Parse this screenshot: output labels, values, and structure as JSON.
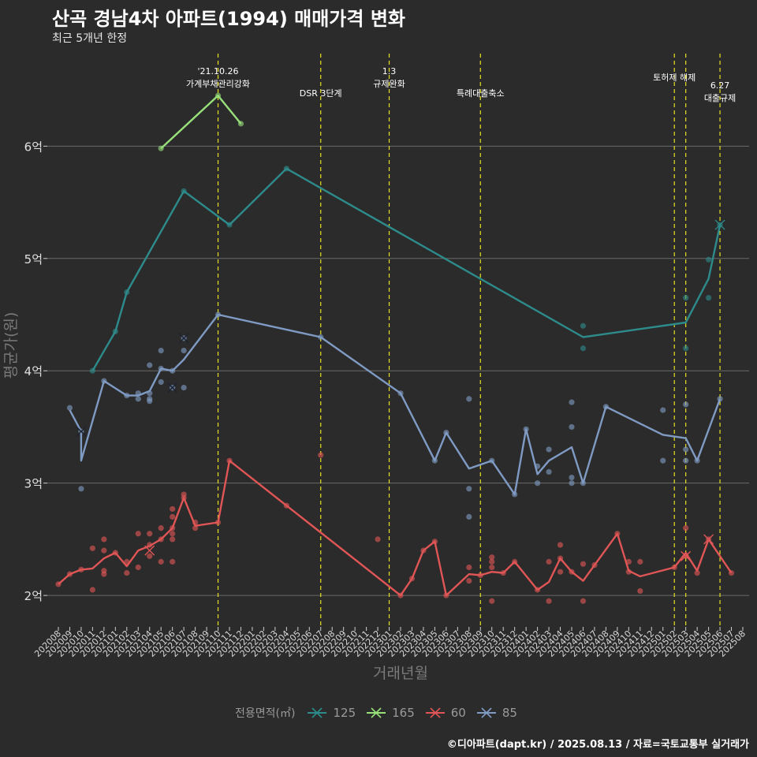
{
  "chart_data": {
    "type": "line",
    "title": "산곡 경남4차 아파트(1994) 매매가격 변화",
    "subtitle": "최근 5개년 한정",
    "xlabel": "거래년월",
    "ylabel": "평균가(원)",
    "caption": "©디아파트(dapt.kr) / 2025.08.13 / 자료=국토교통부 실거래가",
    "y_unit": "억",
    "ylim": [
      1.72,
      6.88
    ],
    "y_ticks": [
      2,
      3,
      4,
      5,
      6
    ],
    "y_tick_labels": [
      "2억",
      "3억",
      "4억",
      "5억",
      "6억"
    ],
    "x_ticks": [
      "202008",
      "202009",
      "202010",
      "202011",
      "202012",
      "202101",
      "202102",
      "202103",
      "202104",
      "202105",
      "202106",
      "202107",
      "202108",
      "202109",
      "202110",
      "202111",
      "202112",
      "202201",
      "202202",
      "202203",
      "202204",
      "202205",
      "202206",
      "202207",
      "202208",
      "202209",
      "202210",
      "202211",
      "202212",
      "202301",
      "202302",
      "202303",
      "202304",
      "202305",
      "202306",
      "202307",
      "202308",
      "202309",
      "202310",
      "202311",
      "202312",
      "202401",
      "202402",
      "202403",
      "202404",
      "202405",
      "202406",
      "202407",
      "202408",
      "202409",
      "202410",
      "202411",
      "202412",
      "202501",
      "202502",
      "202503",
      "202504",
      "202505",
      "202506",
      "202507",
      "202508"
    ],
    "grid": true,
    "legend_title": "전용면적(㎡)",
    "legend_position": "bottom",
    "series": [
      {
        "name": "125",
        "color": "#2e8b8b",
        "line": [
          [
            "202011",
            4.0
          ],
          [
            "202101",
            4.35
          ],
          [
            "202102",
            4.7
          ],
          [
            "202107",
            5.6
          ],
          [
            "202111",
            5.3
          ],
          [
            "202204",
            5.8
          ],
          [
            "202406",
            4.3
          ],
          [
            "202503",
            4.43
          ],
          [
            "202505",
            4.82
          ],
          [
            "202506",
            5.3
          ]
        ],
        "points": [
          [
            "202011",
            4.0
          ],
          [
            "202101",
            4.35
          ],
          [
            "202102",
            4.7
          ],
          [
            "202107",
            5.6
          ],
          [
            "202111",
            5.3
          ],
          [
            "202204",
            5.8
          ],
          [
            "202406",
            4.4
          ],
          [
            "202406",
            4.2
          ],
          [
            "202503",
            4.65
          ],
          [
            "202503",
            4.2
          ],
          [
            "202505",
            4.99
          ],
          [
            "202505",
            4.65
          ],
          [
            "202506",
            5.3
          ]
        ],
        "crosses": [
          [
            "202506",
            5.3
          ]
        ]
      },
      {
        "name": "165",
        "color": "#98e07a",
        "line": [
          [
            "202105",
            5.98
          ],
          [
            "202110",
            6.45
          ],
          [
            "202112",
            6.2
          ]
        ],
        "points": [
          [
            "202105",
            5.98
          ],
          [
            "202110",
            6.45
          ],
          [
            "202112",
            6.2
          ]
        ],
        "crosses": []
      },
      {
        "name": "60",
        "color": "#e05555",
        "line": [
          [
            "202008",
            2.1
          ],
          [
            "202009",
            2.19
          ],
          [
            "202010",
            2.23
          ],
          [
            "202011",
            2.24
          ],
          [
            "202012",
            2.33
          ],
          [
            "202101",
            2.38
          ],
          [
            "202102",
            2.26
          ],
          [
            "202103",
            2.4
          ],
          [
            "202104",
            2.44
          ],
          [
            "202105",
            2.5
          ],
          [
            "202106",
            2.6
          ],
          [
            "202107",
            2.87
          ],
          [
            "202108",
            2.62
          ],
          [
            "202110",
            2.65
          ],
          [
            "202111",
            3.2
          ],
          [
            "202302",
            2.0
          ],
          [
            "202303",
            2.15
          ],
          [
            "202304",
            2.4
          ],
          [
            "202305",
            2.48
          ],
          [
            "202306",
            2.0
          ],
          [
            "202308",
            2.19
          ],
          [
            "202309",
            2.18
          ],
          [
            "202310",
            2.21
          ],
          [
            "202311",
            2.2
          ],
          [
            "202312",
            2.3
          ],
          [
            "202402",
            2.05
          ],
          [
            "202403",
            2.12
          ],
          [
            "202404",
            2.33
          ],
          [
            "202405",
            2.21
          ],
          [
            "202406",
            2.13
          ],
          [
            "202407",
            2.27
          ],
          [
            "202409",
            2.55
          ],
          [
            "202410",
            2.22
          ],
          [
            "202411",
            2.17
          ],
          [
            "202502",
            2.25
          ],
          [
            "202503",
            2.38
          ],
          [
            "202504",
            2.22
          ],
          [
            "202505",
            2.5
          ],
          [
            "202507",
            2.2
          ]
        ],
        "points": [
          [
            "202008",
            2.1
          ],
          [
            "202009",
            2.19
          ],
          [
            "202010",
            2.23
          ],
          [
            "202011",
            2.42
          ],
          [
            "202011",
            2.05
          ],
          [
            "202012",
            2.5
          ],
          [
            "202012",
            2.4
          ],
          [
            "202012",
            2.22
          ],
          [
            "202012",
            2.19
          ],
          [
            "202101",
            2.38
          ],
          [
            "202102",
            2.3
          ],
          [
            "202102",
            2.2
          ],
          [
            "202103",
            2.55
          ],
          [
            "202103",
            2.25
          ],
          [
            "202104",
            2.55
          ],
          [
            "202104",
            2.45
          ],
          [
            "202104",
            2.35
          ],
          [
            "202105",
            2.6
          ],
          [
            "202105",
            2.5
          ],
          [
            "202105",
            2.3
          ],
          [
            "202106",
            2.77
          ],
          [
            "202106",
            2.7
          ],
          [
            "202106",
            2.6
          ],
          [
            "202106",
            2.55
          ],
          [
            "202106",
            2.5
          ],
          [
            "202106",
            2.3
          ],
          [
            "202107",
            2.9
          ],
          [
            "202107",
            2.87
          ],
          [
            "202108",
            2.65
          ],
          [
            "202108",
            2.6
          ],
          [
            "202110",
            2.65
          ],
          [
            "202111",
            3.2
          ],
          [
            "202204",
            2.8
          ],
          [
            "202207",
            3.25
          ],
          [
            "202212",
            2.5
          ],
          [
            "202302",
            2.0
          ],
          [
            "202303",
            2.15
          ],
          [
            "202304",
            2.4
          ],
          [
            "202305",
            2.48
          ],
          [
            "202306",
            2.0
          ],
          [
            "202308",
            2.25
          ],
          [
            "202308",
            2.13
          ],
          [
            "202309",
            2.18
          ],
          [
            "202310",
            2.34
          ],
          [
            "202310",
            2.3
          ],
          [
            "202310",
            2.25
          ],
          [
            "202310",
            1.95
          ],
          [
            "202311",
            2.2
          ],
          [
            "202312",
            2.3
          ],
          [
            "202402",
            2.05
          ],
          [
            "202403",
            2.3
          ],
          [
            "202403",
            1.95
          ],
          [
            "202404",
            2.45
          ],
          [
            "202404",
            2.33
          ],
          [
            "202404",
            2.21
          ],
          [
            "202405",
            2.21
          ],
          [
            "202406",
            2.28
          ],
          [
            "202406",
            1.95
          ],
          [
            "202407",
            2.27
          ],
          [
            "202409",
            2.55
          ],
          [
            "202410",
            2.3
          ],
          [
            "202410",
            2.21
          ],
          [
            "202411",
            2.3
          ],
          [
            "202411",
            2.04
          ],
          [
            "202502",
            2.25
          ],
          [
            "202503",
            2.6
          ],
          [
            "202503",
            2.35
          ],
          [
            "202504",
            2.2
          ],
          [
            "202505",
            2.5
          ],
          [
            "202507",
            2.2
          ]
        ],
        "crosses": [
          [
            "202104",
            2.4
          ],
          [
            "202503",
            2.35
          ],
          [
            "202505",
            2.5
          ]
        ]
      },
      {
        "name": "85",
        "color": "#7f9bc4",
        "line": [
          [
            "202009",
            3.65
          ],
          [
            "202010",
            3.46
          ],
          [
            "202010",
            3.2
          ],
          [
            "202012",
            3.91
          ],
          [
            "202102",
            3.78
          ],
          [
            "202103",
            3.78
          ],
          [
            "202104",
            3.82
          ],
          [
            "202105",
            4.02
          ],
          [
            "202106",
            4.0
          ],
          [
            "202107",
            4.1
          ],
          [
            "202110",
            4.5
          ],
          [
            "202207",
            4.3
          ],
          [
            "202302",
            3.8
          ],
          [
            "202305",
            3.2
          ],
          [
            "202306",
            3.45
          ],
          [
            "202308",
            3.13
          ],
          [
            "202310",
            3.2
          ],
          [
            "202312",
            2.9
          ],
          [
            "202401",
            3.48
          ],
          [
            "202402",
            3.08
          ],
          [
            "202403",
            3.2
          ],
          [
            "202405",
            3.32
          ],
          [
            "202406",
            3.0
          ],
          [
            "202408",
            3.68
          ],
          [
            "202501",
            3.43
          ],
          [
            "202503",
            3.4
          ],
          [
            "202504",
            3.2
          ],
          [
            "202506",
            3.75
          ]
        ],
        "points": [
          [
            "202009",
            3.67
          ],
          [
            "202010",
            3.46
          ],
          [
            "202010",
            2.95
          ],
          [
            "202012",
            3.91
          ],
          [
            "202102",
            3.78
          ],
          [
            "202103",
            3.8
          ],
          [
            "202103",
            3.75
          ],
          [
            "202104",
            4.05
          ],
          [
            "202104",
            3.8
          ],
          [
            "202104",
            3.75
          ],
          [
            "202104",
            3.73
          ],
          [
            "202105",
            4.18
          ],
          [
            "202105",
            4.02
          ],
          [
            "202105",
            3.9
          ],
          [
            "202106",
            4.0
          ],
          [
            "202106",
            3.85
          ],
          [
            "202107",
            4.29
          ],
          [
            "202107",
            4.18
          ],
          [
            "202107",
            3.85
          ],
          [
            "202110",
            4.5
          ],
          [
            "202207",
            4.3
          ],
          [
            "202302",
            3.8
          ],
          [
            "202305",
            3.2
          ],
          [
            "202306",
            3.45
          ],
          [
            "202308",
            3.75
          ],
          [
            "202308",
            2.95
          ],
          [
            "202308",
            2.7
          ],
          [
            "202310",
            3.2
          ],
          [
            "202312",
            2.9
          ],
          [
            "202401",
            3.48
          ],
          [
            "202402",
            3.15
          ],
          [
            "202402",
            3.0
          ],
          [
            "202403",
            3.3
          ],
          [
            "202403",
            3.1
          ],
          [
            "202405",
            3.72
          ],
          [
            "202405",
            3.5
          ],
          [
            "202405",
            3.05
          ],
          [
            "202405",
            3.0
          ],
          [
            "202406",
            3.0
          ],
          [
            "202408",
            3.68
          ],
          [
            "202501",
            3.65
          ],
          [
            "202501",
            3.2
          ],
          [
            "202503",
            3.7
          ],
          [
            "202503",
            3.3
          ],
          [
            "202503",
            3.2
          ],
          [
            "202504",
            3.2
          ],
          [
            "202506",
            3.75
          ]
        ],
        "crosses": [
          [
            "202010",
            3.46
          ],
          [
            "202106",
            3.85
          ],
          [
            "202107",
            4.29
          ]
        ]
      }
    ],
    "events": [
      {
        "month": "202110",
        "label_lines": [
          "'21.10.26",
          "가계부채관리강화"
        ],
        "row": 1
      },
      {
        "month": "202207",
        "label_lines": [
          "DSR 3단계"
        ],
        "row": 2
      },
      {
        "month": "202301",
        "label_lines": [
          "1.3",
          "규제완화"
        ],
        "row": 1
      },
      {
        "month": "202309",
        "label_lines": [
          "특례대출축소"
        ],
        "row": 2
      },
      {
        "month": "202502",
        "label_lines": [
          "토허제 해제"
        ],
        "row": 0
      },
      {
        "month": "202503",
        "label_lines": [],
        "row": 0
      },
      {
        "month": "202506",
        "label_lines": [
          "6.27",
          "대출규제"
        ],
        "row": 1.5
      }
    ],
    "event_line_color": "#e8e020"
  }
}
